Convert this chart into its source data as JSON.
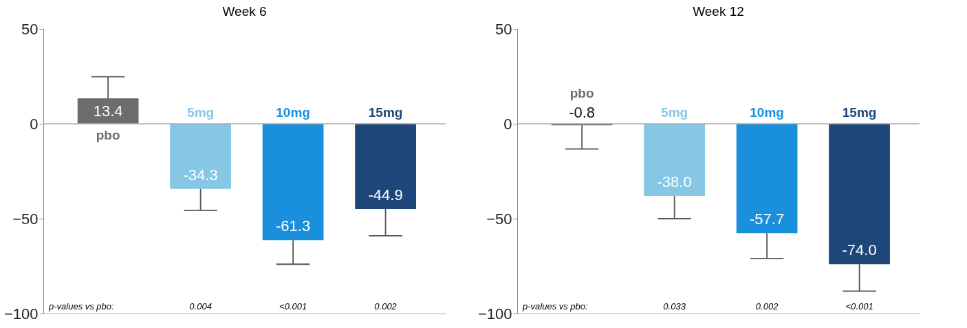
{
  "chart_data": [
    {
      "type": "bar",
      "title": "Week 6",
      "categories": [
        "pbo",
        "5mg",
        "10mg",
        "15mg"
      ],
      "values": [
        13.4,
        -34.3,
        -61.3,
        -44.9
      ],
      "colors": [
        "#6d6d6d",
        "#86c7e6",
        "#1a90dc",
        "#1e4679"
      ],
      "value_labels": [
        "13.4",
        "-34.3",
        "-61.3",
        "-44.9"
      ],
      "errors": [
        [
          13.4,
          24.8
        ],
        [
          -45.6,
          -34.3
        ],
        [
          -74.0,
          -61.3
        ],
        [
          -59.0,
          -44.9
        ]
      ],
      "ylim": [
        -100,
        50
      ],
      "yticks": [
        -100,
        -50,
        0,
        50
      ],
      "ref_lines": [
        {
          "axis": "y",
          "value": 0
        }
      ],
      "grid": false,
      "legend": false,
      "tick_labels": "y",
      "annotations": [
        "p-values vs pbo:",
        "0.004",
        "<0.001",
        "0.002"
      ]
    },
    {
      "type": "bar",
      "title": "Week 12",
      "categories": [
        "pbo",
        "5mg",
        "10mg",
        "15mg"
      ],
      "values": [
        -0.8,
        -38.0,
        -57.7,
        -74.0
      ],
      "colors": [
        "#6d6d6d",
        "#86c7e6",
        "#1a90dc",
        "#1e4679"
      ],
      "value_labels": [
        "-0.8",
        "-38.0",
        "-57.7",
        "-74.0"
      ],
      "errors": [
        [
          -13.3,
          -0.8
        ],
        [
          -50.0,
          -38.0
        ],
        [
          -71.0,
          -57.7
        ],
        [
          -88.2,
          -74.0
        ]
      ],
      "ylim": [
        -100,
        50
      ],
      "yticks": [
        -100,
        -50,
        0,
        50
      ],
      "ref_lines": [
        {
          "axis": "y",
          "value": 0
        }
      ],
      "grid": false,
      "legend": false,
      "tick_labels": "y",
      "annotations": [
        "p-values vs pbo:",
        "0.033",
        "0.002",
        "<0.001"
      ]
    }
  ]
}
